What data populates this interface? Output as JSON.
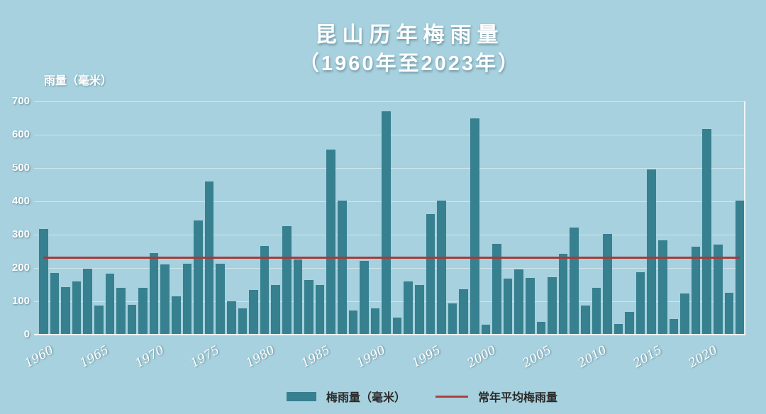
{
  "title": {
    "line1": "昆山历年梅雨量",
    "line2": "（1960年至2023年）"
  },
  "y_axis": {
    "unit_label": "雨量（毫米）",
    "ticks": [
      0,
      100,
      200,
      300,
      400,
      500,
      600,
      700
    ]
  },
  "legend": {
    "bar_label": "梅雨量（毫米）",
    "line_label": "常年平均梅雨量"
  },
  "colors": {
    "background": "#a7d1de",
    "bar": "#36808f",
    "average_line": "#a83a38",
    "gridline": "rgba(255,255,255,0.45)",
    "text_light": "#ffffff",
    "legend_text": "#2b2b2b"
  },
  "chart_data": {
    "type": "bar",
    "title": "昆山历年梅雨量（1960年至2023年）",
    "ylabel": "雨量（毫米）",
    "ylim": [
      0,
      700
    ],
    "grid": true,
    "legend_position": "bottom",
    "x_tick_labels": [
      "1960",
      "1965",
      "1970",
      "1975",
      "1980",
      "1985",
      "1990",
      "1995",
      "2000",
      "2005",
      "2010",
      "2015",
      "2020"
    ],
    "categories": [
      1960,
      1961,
      1962,
      1963,
      1964,
      1965,
      1966,
      1967,
      1968,
      1969,
      1970,
      1971,
      1972,
      1973,
      1974,
      1975,
      1976,
      1977,
      1978,
      1979,
      1980,
      1981,
      1982,
      1983,
      1984,
      1985,
      1986,
      1987,
      1988,
      1989,
      1990,
      1991,
      1992,
      1993,
      1994,
      1995,
      1996,
      1997,
      1998,
      1999,
      2000,
      2001,
      2002,
      2003,
      2004,
      2005,
      2006,
      2007,
      2008,
      2009,
      2010,
      2011,
      2012,
      2013,
      2014,
      2015,
      2016,
      2017,
      2018,
      2019,
      2020,
      2021,
      2022,
      2023
    ],
    "series": [
      {
        "name": "梅雨量（毫米）",
        "values": [
          318,
          186,
          142,
          160,
          198,
          88,
          183,
          140,
          90,
          140,
          245,
          210,
          115,
          213,
          342,
          460,
          213,
          100,
          78,
          135,
          265,
          150,
          325,
          226,
          163,
          150,
          555,
          403,
          73,
          222,
          78,
          670,
          52,
          160,
          148,
          362,
          403,
          93,
          137,
          650,
          30,
          272,
          168,
          195,
          170,
          38,
          173,
          243,
          322,
          88,
          140,
          302,
          33,
          68,
          187,
          495,
          283,
          47,
          123,
          263,
          617,
          270,
          125,
          403
        ]
      }
    ],
    "average_line": {
      "name": "常年平均梅雨量",
      "value": 230
    }
  }
}
